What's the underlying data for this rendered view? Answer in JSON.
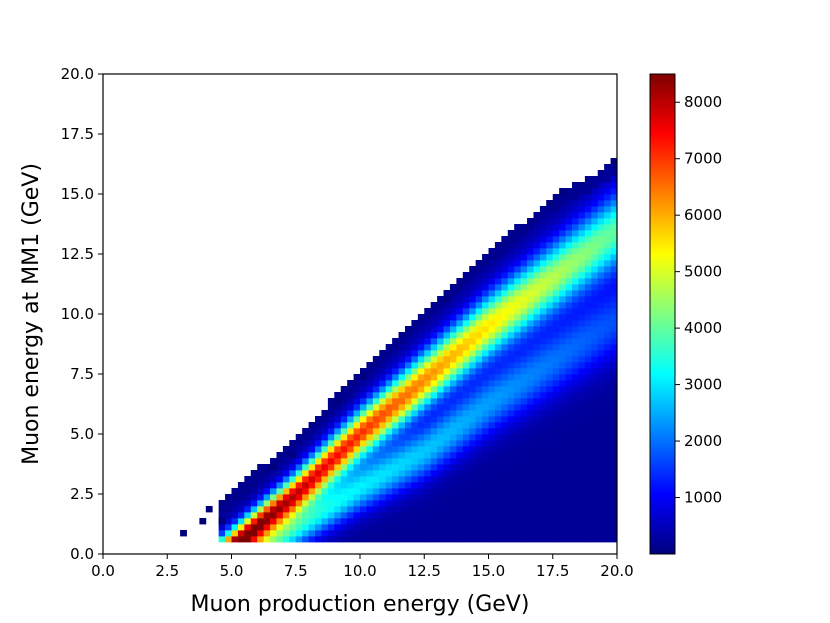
{
  "chart_data": {
    "type": "heatmap",
    "title": "",
    "xlabel": "Muon production energy (GeV)",
    "ylabel": "Muon energy at MM1 (GeV)",
    "xlim": [
      0.0,
      20.0
    ],
    "ylim": [
      0.0,
      20.0
    ],
    "x_ticks": [
      "0.0",
      "2.5",
      "5.0",
      "7.5",
      "10.0",
      "12.5",
      "15.0",
      "17.5",
      "20.0"
    ],
    "y_ticks": [
      "0.0",
      "2.5",
      "5.0",
      "7.5",
      "10.0",
      "12.5",
      "15.0",
      "17.5",
      "20.0"
    ],
    "bin_width_gev": 0.25,
    "colormap": "jet",
    "colorbar": {
      "range": [
        0,
        8500
      ],
      "ticks": [
        "1000",
        "2000",
        "3000",
        "4000",
        "5000",
        "6000",
        "7000",
        "8000"
      ],
      "colors": [
        "#00007f",
        "#0000ff",
        "#0080ff",
        "#00ffff",
        "#80ff80",
        "#ffff00",
        "#ff8000",
        "#ff0000",
        "#7f0000"
      ]
    },
    "occupied_region": {
      "y_min": 0.5,
      "upper_edge": [
        {
          "x": 4.0,
          "y": 1.75
        },
        {
          "x": 5.0,
          "y": 2.5
        },
        {
          "x": 7.5,
          "y": 4.75
        },
        {
          "x": 10.0,
          "y": 7.5
        },
        {
          "x": 12.5,
          "y": 10.0
        },
        {
          "x": 15.0,
          "y": 12.5
        },
        {
          "x": 17.5,
          "y": 14.75
        },
        {
          "x": 20.0,
          "y": 16.25
        }
      ]
    },
    "bands": [
      {
        "description": "primary ridge",
        "peak_counts": 8300,
        "ridge": [
          {
            "x": 5.5,
            "y": 0.75
          },
          {
            "x": 7.5,
            "y": 2.5
          },
          {
            "x": 10.0,
            "y": 5.0
          },
          {
            "x": 12.5,
            "y": 7.25
          },
          {
            "x": 15.0,
            "y": 9.5
          },
          {
            "x": 17.5,
            "y": 11.5
          },
          {
            "x": 20.0,
            "y": 13.5
          }
        ]
      },
      {
        "description": "secondary ridge",
        "peak_counts": 3300,
        "ridge": [
          {
            "x": 7.0,
            "y": 0.75
          },
          {
            "x": 10.0,
            "y": 2.75
          },
          {
            "x": 12.5,
            "y": 4.25
          },
          {
            "x": 15.0,
            "y": 6.25
          },
          {
            "x": 17.5,
            "y": 8.0
          },
          {
            "x": 20.0,
            "y": 9.75
          }
        ]
      }
    ],
    "background_counts": 200,
    "edge_counts": 40,
    "isolated_bins": [
      {
        "x": 3.0,
        "y": 0.75
      },
      {
        "x": 3.75,
        "y": 1.25
      },
      {
        "x": 4.0,
        "y": 1.75
      },
      {
        "x": 4.5,
        "y": 1.25
      },
      {
        "x": 6.5,
        "y": 3.5
      },
      {
        "x": 7.25,
        "y": 4.0
      },
      {
        "x": 9.0,
        "y": 6.25
      },
      {
        "x": 10.0,
        "y": 7.25
      },
      {
        "x": 13.25,
        "y": 10.5
      },
      {
        "x": 17.75,
        "y": 15.0
      },
      {
        "x": 17.25,
        "y": 14.5
      },
      {
        "x": 19.75,
        "y": 16.25
      },
      {
        "x": 19.75,
        "y": 0.75
      }
    ]
  }
}
